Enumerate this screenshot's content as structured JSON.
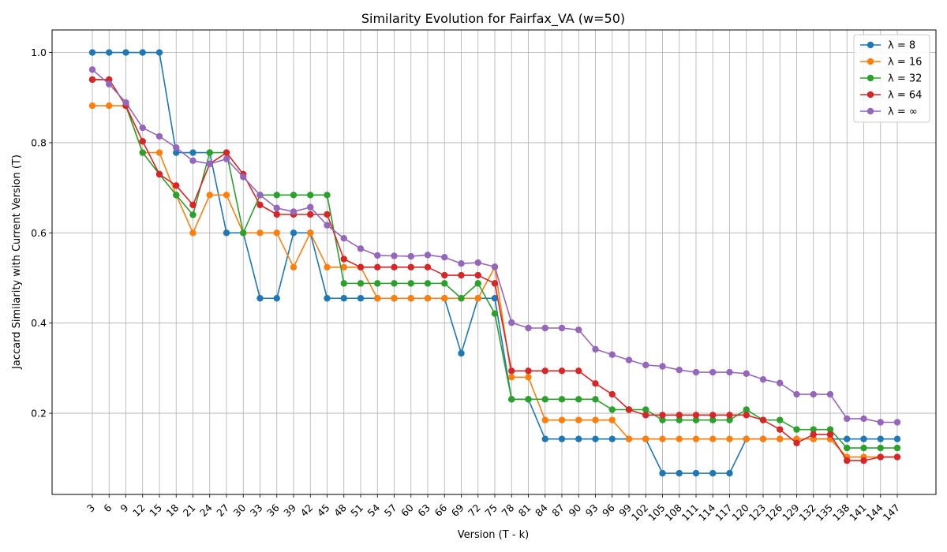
{
  "chart_data": {
    "type": "line",
    "title": "Similarity Evolution for Fairfax_VA (w=50)",
    "xlabel": "Version (T - k)",
    "ylabel": "Jaccard Similarity with Current Version (T)",
    "categories": [
      "3",
      "6",
      "9",
      "12",
      "15",
      "18",
      "21",
      "24",
      "27",
      "30",
      "33",
      "36",
      "39",
      "42",
      "45",
      "48",
      "51",
      "54",
      "57",
      "60",
      "63",
      "66",
      "69",
      "72",
      "75",
      "78",
      "81",
      "84",
      "87",
      "90",
      "93",
      "96",
      "99",
      "102",
      "105",
      "108",
      "111",
      "114",
      "117",
      "120",
      "123",
      "126",
      "129",
      "132",
      "135",
      "138",
      "141",
      "144",
      "147"
    ],
    "ylim": [
      0.02,
      1.05
    ],
    "yticks": [
      "0.2",
      "0.4",
      "0.6",
      "0.8",
      "1.0"
    ],
    "grid": true,
    "legend_position": "top-right",
    "series": [
      {
        "name": "λ = 8",
        "color": "#1f77b4",
        "values": [
          1.0,
          1.0,
          1.0,
          1.0,
          1.0,
          0.778,
          0.778,
          0.778,
          0.6,
          0.6,
          0.455,
          0.455,
          0.6,
          0.6,
          0.455,
          0.455,
          0.455,
          0.455,
          0.455,
          0.455,
          0.455,
          0.455,
          0.333,
          0.455,
          0.455,
          0.231,
          0.231,
          0.143,
          0.143,
          0.143,
          0.143,
          0.143,
          0.143,
          0.143,
          0.067,
          0.067,
          0.067,
          0.067,
          0.067,
          0.143,
          0.143,
          0.143,
          0.143,
          0.143,
          0.143,
          0.143,
          0.143,
          0.143,
          0.143
        ]
      },
      {
        "name": "λ = 16",
        "color": "#ff7f0e",
        "values": [
          0.882,
          0.882,
          0.882,
          0.778,
          0.778,
          0.684,
          0.6,
          0.684,
          0.684,
          0.6,
          0.6,
          0.6,
          0.524,
          0.6,
          0.524,
          0.524,
          0.524,
          0.455,
          0.455,
          0.455,
          0.455,
          0.455,
          0.455,
          0.455,
          0.524,
          0.28,
          0.28,
          0.185,
          0.185,
          0.185,
          0.185,
          0.185,
          0.143,
          0.143,
          0.143,
          0.143,
          0.143,
          0.143,
          0.143,
          0.143,
          0.143,
          0.143,
          0.143,
          0.143,
          0.143,
          0.103,
          0.103,
          0.103,
          0.103
        ]
      },
      {
        "name": "λ = 32",
        "color": "#2ca02c",
        "values": [
          0.94,
          0.94,
          0.882,
          0.778,
          0.73,
          0.684,
          0.64,
          0.778,
          0.778,
          0.6,
          0.684,
          0.684,
          0.684,
          0.684,
          0.684,
          0.488,
          0.488,
          0.488,
          0.488,
          0.488,
          0.488,
          0.488,
          0.455,
          0.488,
          0.421,
          0.231,
          0.231,
          0.231,
          0.231,
          0.231,
          0.231,
          0.208,
          0.208,
          0.208,
          0.185,
          0.185,
          0.185,
          0.185,
          0.185,
          0.208,
          0.185,
          0.185,
          0.164,
          0.164,
          0.164,
          0.123,
          0.123,
          0.123,
          0.123
        ]
      },
      {
        "name": "λ = 64",
        "color": "#d62728",
        "values": [
          0.94,
          0.94,
          0.882,
          0.803,
          0.73,
          0.705,
          0.662,
          0.753,
          0.778,
          0.73,
          0.662,
          0.641,
          0.641,
          0.641,
          0.641,
          0.542,
          0.524,
          0.524,
          0.524,
          0.524,
          0.524,
          0.506,
          0.506,
          0.506,
          0.488,
          0.294,
          0.294,
          0.294,
          0.294,
          0.294,
          0.266,
          0.242,
          0.208,
          0.196,
          0.196,
          0.196,
          0.196,
          0.196,
          0.196,
          0.196,
          0.185,
          0.164,
          0.134,
          0.153,
          0.153,
          0.095,
          0.095,
          0.103,
          0.103
        ]
      },
      {
        "name": "λ = ∞",
        "color": "#9467bd",
        "values": [
          0.962,
          0.93,
          0.889,
          0.833,
          0.814,
          0.789,
          0.76,
          0.753,
          0.764,
          0.724,
          0.684,
          0.655,
          0.647,
          0.657,
          0.617,
          0.588,
          0.565,
          0.55,
          0.549,
          0.548,
          0.551,
          0.546,
          0.532,
          0.534,
          0.525,
          0.401,
          0.389,
          0.389,
          0.389,
          0.385,
          0.342,
          0.33,
          0.318,
          0.307,
          0.304,
          0.296,
          0.291,
          0.291,
          0.291,
          0.288,
          0.275,
          0.267,
          0.242,
          0.242,
          0.242,
          0.188,
          0.188,
          0.18,
          0.18
        ]
      }
    ]
  }
}
